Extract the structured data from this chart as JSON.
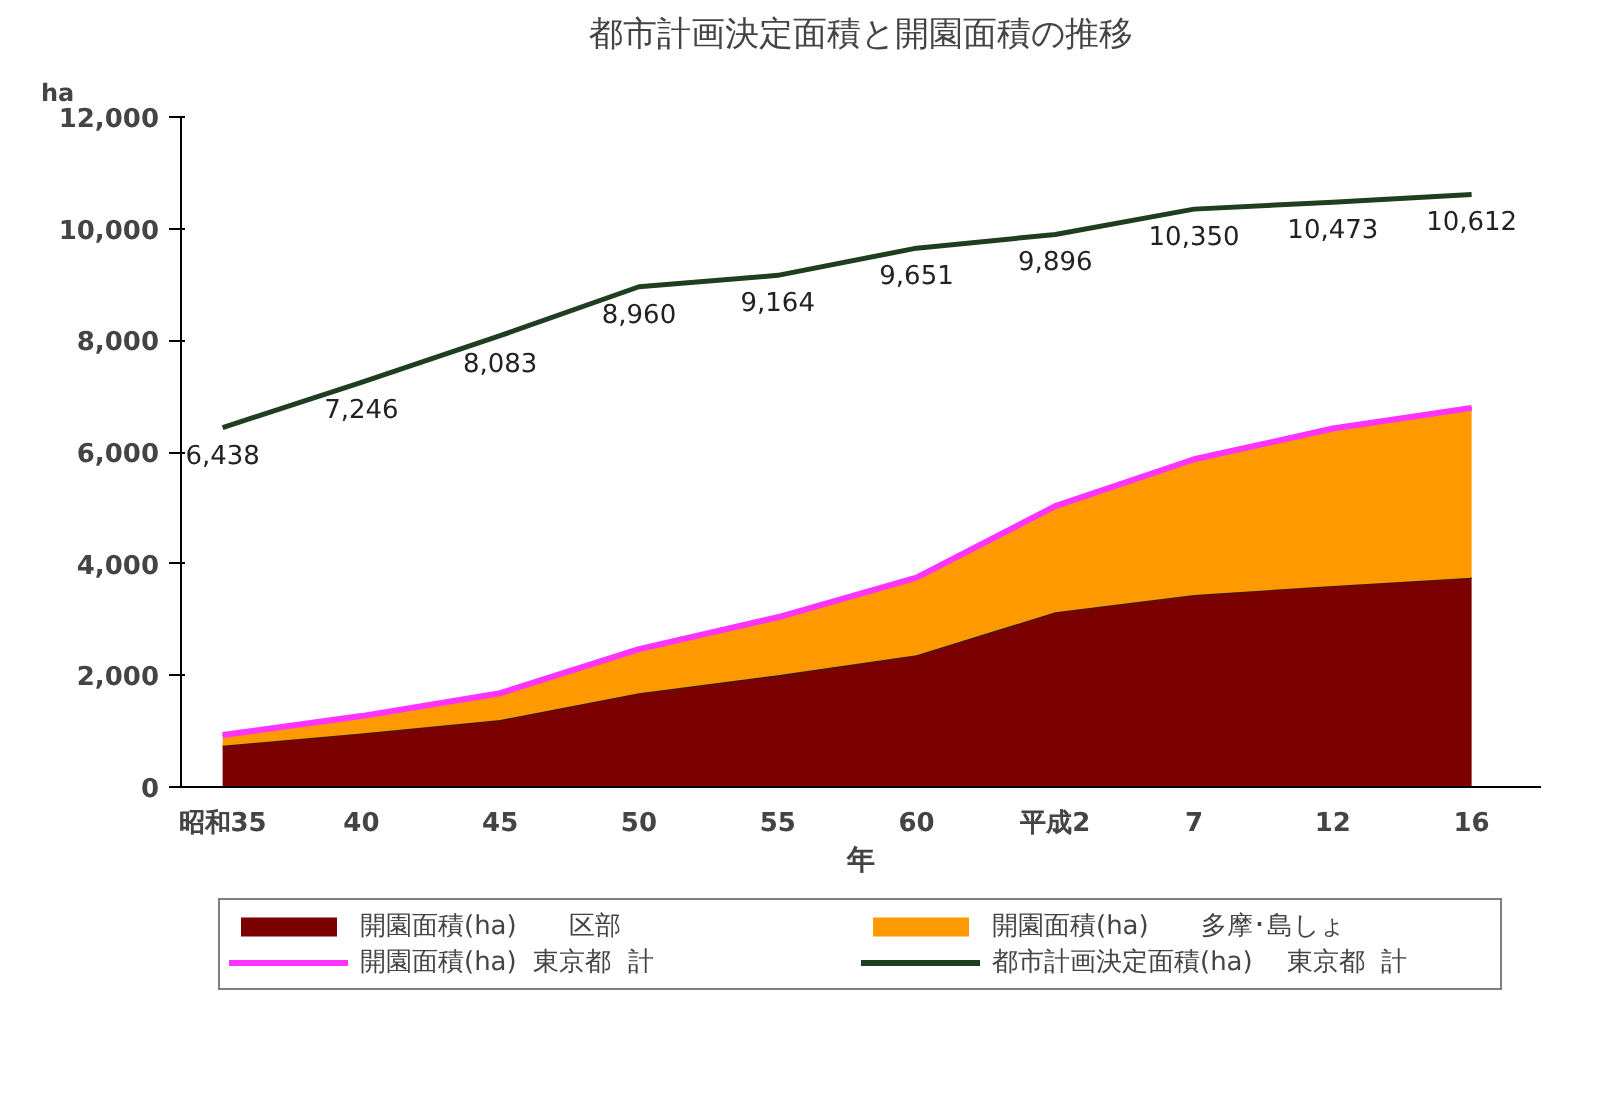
{
  "chart_data": {
    "type": "area",
    "title": "都市計画決定面積と開園面積の推移",
    "ylabel": "ha",
    "xlabel": "年",
    "categories": [
      "昭和35",
      "40",
      "45",
      "50",
      "55",
      "60",
      "平成2",
      "7",
      "12",
      "16"
    ],
    "stacked": true,
    "series": [
      {
        "name": "開園面積(ha)　　区部",
        "color": "#7b0000",
        "values": [
          740,
          960,
          1200,
          1680,
          2000,
          2360,
          3130,
          3440,
          3600,
          3750
        ]
      },
      {
        "name": "開園面積(ha)　　多摩･島しょ",
        "color": "#ff9900",
        "values": [
          190,
          310,
          480,
          790,
          1040,
          1390,
          1900,
          2430,
          2820,
          3040
        ]
      },
      {
        "name": "開園面積(ha)  東京都  計",
        "type": "line",
        "color": "#ff33ff",
        "values": [
          930,
          1270,
          1680,
          2470,
          3040,
          3750,
          5030,
          5870,
          6420,
          6790
        ]
      },
      {
        "name": "都市計画決定面積(ha)　 東京都  計",
        "type": "line",
        "color": "#1f3d1f",
        "values": [
          6438,
          7246,
          8083,
          8960,
          9164,
          9651,
          9896,
          10350,
          10473,
          10612
        ],
        "value_labels": [
          "6,438",
          "7,246",
          "8,083",
          "8,960",
          "9,164",
          "9,651",
          "9,896",
          "10,350",
          "10,473",
          "10,612"
        ]
      }
    ],
    "ylim": [
      0,
      12000
    ],
    "yticks": [
      {
        "value": 0,
        "label": "0"
      },
      {
        "value": 2000,
        "label": "2,000"
      },
      {
        "value": 4000,
        "label": "4,000"
      },
      {
        "value": 6000,
        "label": "6,000"
      },
      {
        "value": 8000,
        "label": "8,000"
      },
      {
        "value": 10000,
        "label": "10,000"
      },
      {
        "value": 12000,
        "label": "12,000"
      }
    ],
    "grid": false,
    "legend": "bottom"
  }
}
